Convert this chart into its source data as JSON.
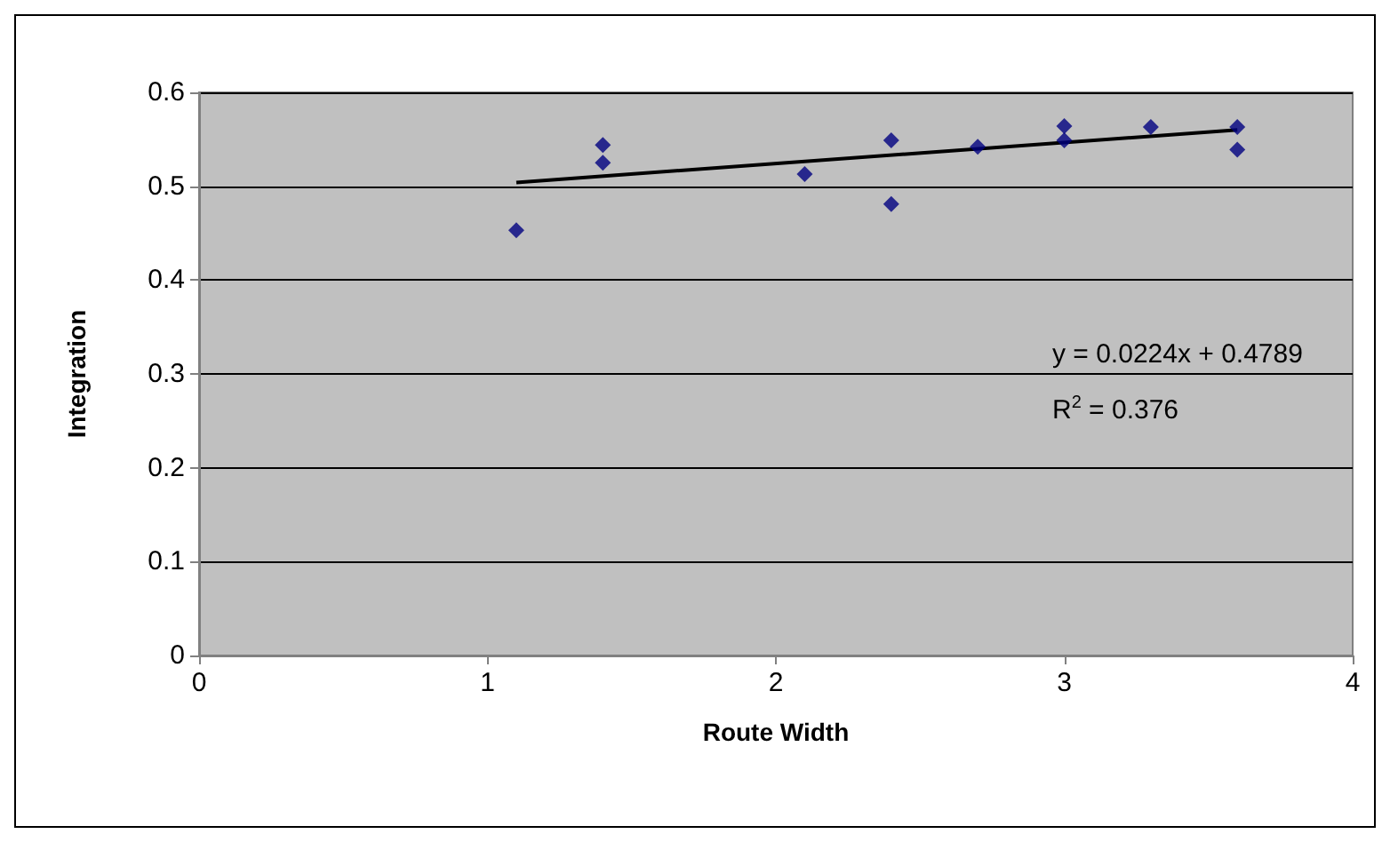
{
  "chart_data": {
    "type": "scatter",
    "xlabel": "Route Width",
    "ylabel": "Integration",
    "xlim": [
      0,
      4
    ],
    "xticks": [
      0,
      1,
      2,
      3,
      4
    ],
    "ylim": [
      0,
      0.6
    ],
    "yticks": [
      0,
      0.1,
      0.2,
      0.3,
      0.4,
      0.5,
      0.6
    ],
    "grid": "y",
    "series": [
      {
        "marker": "diamond",
        "color": "#000080",
        "x": [
          1.1,
          1.4,
          1.4,
          2.1,
          2.4,
          2.4,
          2.7,
          3.0,
          3.0,
          3.3,
          3.6,
          3.6
        ],
        "values": [
          0.453,
          0.544,
          0.525,
          0.513,
          0.549,
          0.481,
          0.542,
          0.564,
          0.549,
          0.563,
          0.563,
          0.539
        ]
      },
      {
        "type": "line",
        "marker": "none",
        "color": "#000000",
        "x": [
          1.1,
          3.6
        ],
        "values": [
          0.504,
          0.56
        ]
      }
    ],
    "annotations": [
      "y = 0.0224x + 0.4789",
      "R$^{2}$ = 0.376"
    ]
  }
}
